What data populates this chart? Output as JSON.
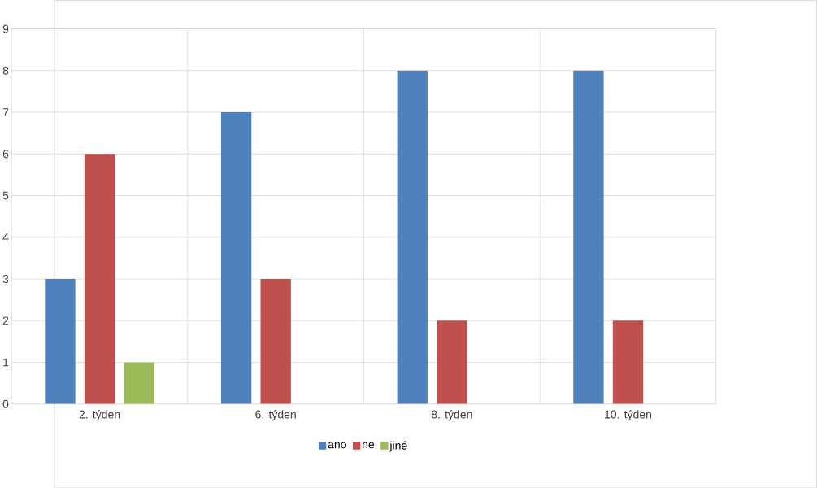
{
  "chart_data": {
    "type": "bar",
    "categories": [
      "2. týden",
      "6. týden",
      "8. týden",
      "10. týden"
    ],
    "series": [
      {
        "name": "ano",
        "color": "#4f81bd",
        "values": [
          3,
          7,
          8,
          8
        ]
      },
      {
        "name": "ne",
        "color": "#c0504d",
        "values": [
          6,
          3,
          2,
          2
        ]
      },
      {
        "name": "jiné",
        "color": "#9bbb59",
        "values": [
          1,
          0,
          0,
          0
        ]
      }
    ],
    "ylim": [
      0,
      9
    ],
    "yticks": [
      0,
      1,
      2,
      3,
      4,
      5,
      6,
      7,
      8,
      9
    ],
    "grid": true,
    "legend": "bottom"
  }
}
